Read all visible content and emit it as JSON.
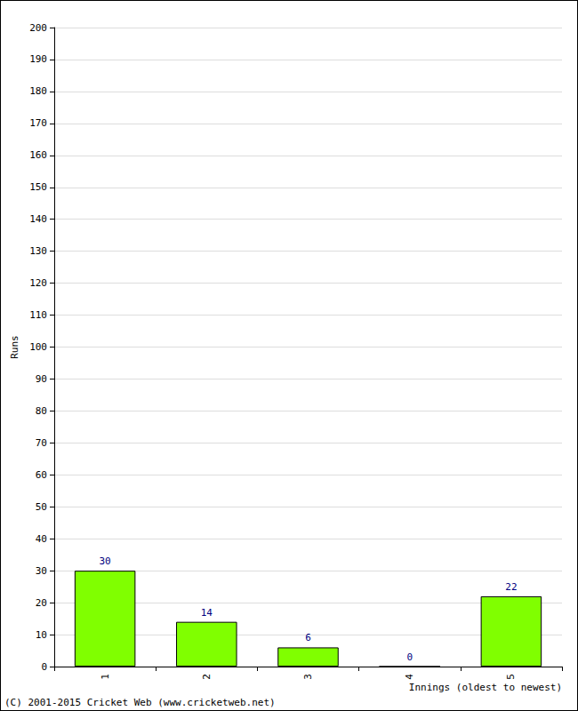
{
  "chart_data": {
    "type": "bar",
    "categories": [
      "1",
      "2",
      "3",
      "4",
      "5"
    ],
    "values": [
      30,
      14,
      6,
      0,
      22
    ],
    "color": "#80ff00",
    "x_label": "Innings (oldest to newest)",
    "y_label": "Runs",
    "ylim": [
      0,
      200
    ],
    "yticks": [
      0,
      10,
      20,
      30,
      40,
      50,
      60,
      70,
      80,
      90,
      100,
      110,
      120,
      130,
      140,
      150,
      160,
      170,
      180,
      190,
      200
    ],
    "grid": true,
    "data_labels": true,
    "annotations": [
      "(C) 2001-2015 Cricket Web (www.cricketweb.net)"
    ]
  }
}
